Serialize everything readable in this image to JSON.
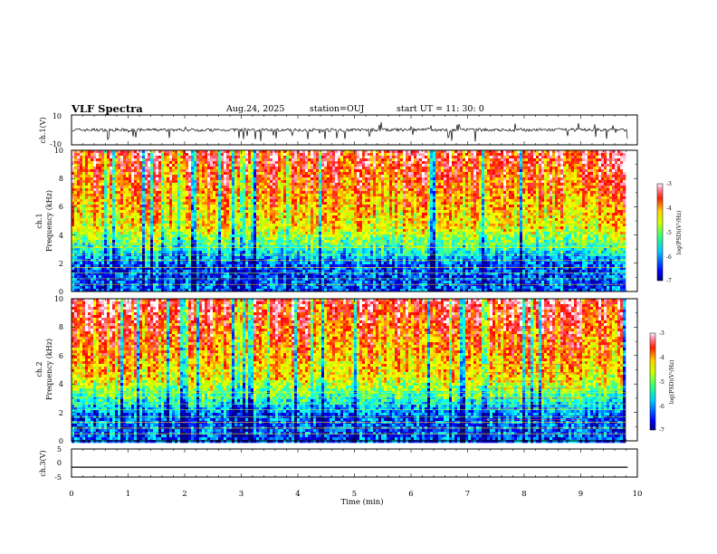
{
  "header": {
    "title": "VLF Spectra",
    "date": "Aug.24, 2025",
    "station": "station=OUJ",
    "start": "start  UT  =   11: 30: 0"
  },
  "chart_data": [
    {
      "type": "line",
      "panel": "ch1-waveform",
      "ylabel": "ch.1(V)",
      "yticks": [
        "10",
        "-10"
      ],
      "ylim": [
        -10,
        10
      ],
      "xlim": [
        0,
        10
      ],
      "baseline": 0,
      "noise_amplitude_v": 2,
      "data_end_min": 9.83,
      "color": "#000000"
    },
    {
      "type": "heatmap",
      "panel": "ch1-spectrogram",
      "ylabel_line1": "ch.1",
      "ylabel_line2": "Frequency  (kHz)",
      "yticks": [
        "0",
        "2",
        "4",
        "6",
        "8",
        "10"
      ],
      "ylim": [
        0,
        10
      ],
      "xlim": [
        0,
        10
      ],
      "data_end_min": 9.83,
      "colorbar": {
        "label": "log(PSD)(V²/Hz)",
        "ticks": [
          "-3",
          "-4",
          "-5",
          "-6",
          "-7"
        ],
        "range": [
          -7,
          -3
        ]
      },
      "colorscale": [
        "#00007f",
        "#0000ff",
        "#00a0ff",
        "#00ffff",
        "#40ff90",
        "#c0ff00",
        "#ffff00",
        "#ff8000",
        "#ff0000",
        "#ff80a0",
        "#ffffff"
      ]
    },
    {
      "type": "heatmap",
      "panel": "ch2-spectrogram",
      "ylabel_line1": "ch.2",
      "ylabel_line2": "Frequency  (kHz)",
      "yticks": [
        "0",
        "2",
        "4",
        "6",
        "8",
        "10"
      ],
      "ylim": [
        0,
        10
      ],
      "xlim": [
        0,
        10
      ],
      "data_end_min": 9.83,
      "colorbar": {
        "label": "log(PSD)(V²/Hz)",
        "ticks": [
          "-3",
          "-4",
          "-5",
          "-6",
          "-7"
        ],
        "range": [
          -7,
          -3
        ]
      }
    },
    {
      "type": "line",
      "panel": "ch3-waveform",
      "ylabel": "ch.3(V)",
      "yticks": [
        "5",
        "0",
        "-5"
      ],
      "ylim": [
        -5,
        5
      ],
      "xlim": [
        0,
        10
      ],
      "value": -1.5,
      "data_end_min": 9.83,
      "color": "#000000",
      "xlabel": "Time  (min)",
      "xticks": [
        "0",
        "1",
        "2",
        "3",
        "4",
        "5",
        "6",
        "7",
        "8",
        "9",
        "10"
      ]
    }
  ]
}
